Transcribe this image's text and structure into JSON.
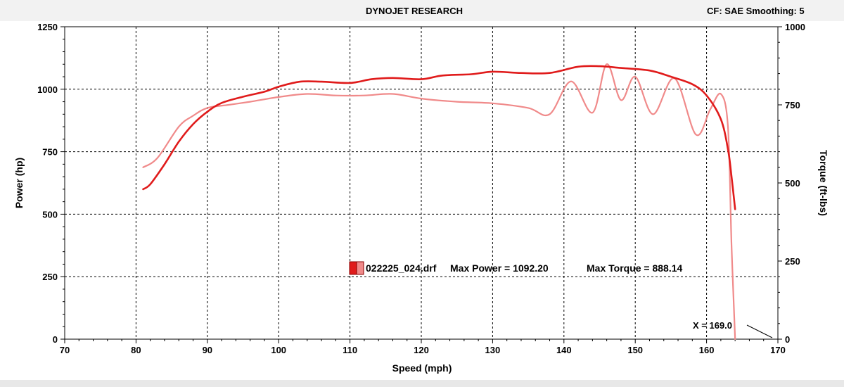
{
  "header": {
    "title": "DYNOJET RESEARCH",
    "info": "CF: SAE  Smoothing: 5"
  },
  "colors": {
    "power": "#e01b1b",
    "torque": "#f08a8a",
    "grid": "#000000",
    "background": "#ffffff"
  },
  "chart_data": {
    "type": "line",
    "title": "DYNOJET RESEARCH",
    "xlabel": "Speed (mph)",
    "ylabel": "Power (hp)",
    "y2label": "Torque (ft-lbs)",
    "xlim": [
      70,
      170
    ],
    "ylim": [
      0,
      1250
    ],
    "y2lim": [
      0,
      1000
    ],
    "x_ticks": [
      70,
      80,
      90,
      100,
      110,
      120,
      130,
      140,
      150,
      160,
      170
    ],
    "y_ticks": [
      0,
      250,
      500,
      750,
      1000,
      1250
    ],
    "y2_ticks": [
      0,
      250,
      500,
      750,
      1000
    ],
    "grid": true,
    "series": [
      {
        "key": "power",
        "axis": "left",
        "x": [
          81,
          82,
          84,
          86,
          88,
          90,
          92,
          95,
          98,
          100,
          103,
          106,
          110,
          113,
          116,
          120,
          123,
          127,
          130,
          134,
          138,
          142,
          145,
          148,
          152,
          155,
          158,
          160,
          162,
          163,
          163.5,
          164
        ],
        "values": [
          600,
          620,
          700,
          790,
          860,
          910,
          945,
          970,
          990,
          1010,
          1030,
          1030,
          1025,
          1040,
          1045,
          1040,
          1055,
          1060,
          1070,
          1065,
          1065,
          1090,
          1092,
          1085,
          1075,
          1050,
          1020,
          975,
          880,
          760,
          650,
          520
        ]
      },
      {
        "key": "torque",
        "axis": "right",
        "x": [
          81,
          83,
          86,
          88,
          90,
          93,
          96,
          100,
          104,
          108,
          112,
          116,
          120,
          125,
          130,
          135,
          138,
          141,
          144,
          146,
          148,
          150,
          152.5,
          155.5,
          158.5,
          160.5,
          162,
          163,
          163.5,
          164
        ],
        "values": [
          550,
          580,
          680,
          715,
          740,
          750,
          760,
          775,
          785,
          780,
          780,
          785,
          770,
          760,
          755,
          740,
          720,
          825,
          725,
          880,
          765,
          840,
          720,
          835,
          655,
          735,
          785,
          680,
          300,
          0
        ]
      }
    ],
    "legend": {
      "file": "022225_024.drf",
      "max_power_label": "Max Power = 1092.20",
      "max_torque_label": "Max Torque = 888.14"
    },
    "annotation": {
      "text": "X = 169.0"
    }
  }
}
